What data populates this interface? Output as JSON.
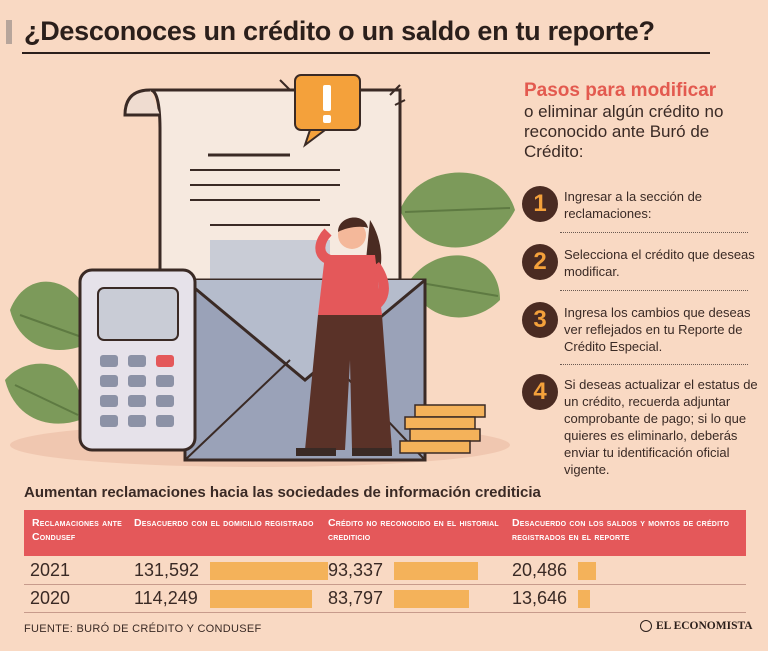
{
  "title": "¿Desconoces un crédito o un saldo en tu reporte?",
  "steps_panel": {
    "heading": "Pasos para modificar",
    "subheading": "o eliminar algún crédito no reconocido ante Buró de Crédito:",
    "steps": [
      {
        "number": "1",
        "text": "Ingresar a la sección de reclamaciones:"
      },
      {
        "number": "2",
        "text": "Selecciona el crédito que deseas modificar."
      },
      {
        "number": "3",
        "text": "Ingresa los cambios que deseas ver reflejados en tu Reporte de Crédito Especial."
      },
      {
        "number": "4",
        "text": "Si deseas actualizar el estatus de un crédito, recuerda adjuntar comprobante de pago; si lo que quieres es eliminarlo, deberás enviar tu identificación oficial vigente."
      }
    ]
  },
  "table": {
    "title": "Aumentan reclamaciones hacia las sociedades de información crediticia",
    "headers": [
      "Reclamaciones ante Condusef",
      "Desacuerdo con el domicilio registrado",
      "Crédito no reconocido en el historial crediticio",
      "Desacuerdo con los saldos y montos de crédito registrados en el reporte"
    ],
    "rows": [
      {
        "year": "2021",
        "values": [
          "131,592",
          "93,337",
          "20,486"
        ],
        "numbers": [
          131592,
          93337,
          20486
        ]
      },
      {
        "year": "2020",
        "values": [
          "114,249",
          "83,797",
          "13,646"
        ],
        "numbers": [
          114249,
          83797,
          13646
        ]
      }
    ],
    "bar_color": "#f4b25a",
    "header_color": "#e4585a"
  },
  "footer": {
    "source": "FUENTE:  BURÓ DE CRÉDITO Y CONDUSEF",
    "brand": "EL ECONOMISTA"
  },
  "colors": {
    "background": "#f9d9c3",
    "accent": "#e35a4f",
    "step_circle": "#4a2b22",
    "step_number": "#f4a13b"
  }
}
